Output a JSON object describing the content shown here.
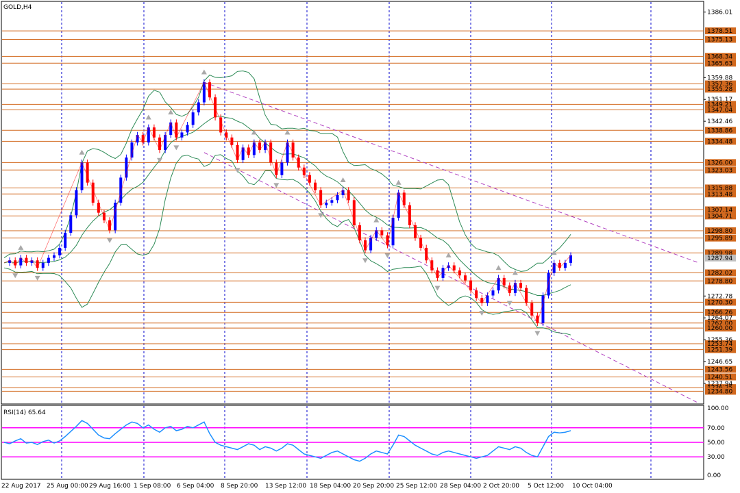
{
  "header": {
    "symbol_label": "GOLD,H4",
    "rsi_label": "RSI(14) 65.64"
  },
  "colors": {
    "bull": "#0000ff",
    "bear": "#ff0000",
    "level": "#d2691e",
    "grid_v": "#0000cc",
    "channel": "#b040c0",
    "band": "#2e8b57",
    "rsi_line": "#1e90ff",
    "rsi_levels": "#ff00ff",
    "fractal": "#a9a9a9",
    "current_price_bg": "#c0c0c0"
  },
  "chart_data": [
    {
      "type": "candlestick",
      "title": "GOLD,H4",
      "y_tick_labels": [
        "1386.01",
        "1359.88",
        "1351.17",
        "1342.46",
        "1272.78",
        "1264.07",
        "1255.36",
        "1246.65",
        "1237.94"
      ],
      "level_labels": [
        "1378.51",
        "1375.13",
        "1368.34",
        "1365.63",
        "1357.36",
        "1355.28",
        "1349.21",
        "1347.04",
        "1338.86",
        "1334.48",
        "1326.00",
        "1323.03",
        "1315.88",
        "1313.48",
        "1307.14",
        "1304.71",
        "1298.80",
        "1295.89",
        "1289.98",
        "1282.02",
        "1278.80",
        "1270.30",
        "1266.26",
        "1262.00",
        "1260.00",
        "1253.74",
        "1251.39",
        "1243.56",
        "1240.51",
        "1236.25",
        "1234.80"
      ],
      "current_price": "1287.94",
      "x_tick_labels": [
        "22 Aug 2017",
        "25 Aug 00:00",
        "29 Aug 16:00",
        "1 Sep 08:00",
        "6 Sep 04:00",
        "8 Sep 20:00",
        "13 Sep 12:00",
        "18 Sep 04:00",
        "20 Sep 20:00",
        "25 Sep 12:00",
        "28 Sep 04:00",
        "2 Oct 20:00",
        "5 Oct 12:00",
        "10 Oct 04:00"
      ],
      "ylim": [
        1230,
        1390
      ],
      "price_path": [
        1286,
        1287,
        1285,
        1288,
        1286,
        1287,
        1284,
        1286,
        1288,
        1289,
        1292,
        1298,
        1305,
        1315,
        1326,
        1318,
        1310,
        1306,
        1303,
        1299,
        1310,
        1320,
        1328,
        1334,
        1337,
        1334,
        1340,
        1336,
        1331,
        1337,
        1342,
        1336,
        1338,
        1341,
        1346,
        1350,
        1358,
        1352,
        1344,
        1338,
        1336,
        1333,
        1327,
        1332,
        1329,
        1334,
        1331,
        1334,
        1326,
        1321,
        1326,
        1334,
        1328,
        1324,
        1321,
        1318,
        1315,
        1309,
        1310,
        1311,
        1313,
        1315,
        1311,
        1301,
        1295,
        1291,
        1296,
        1299,
        1297,
        1293,
        1304,
        1314,
        1309,
        1301,
        1296,
        1292,
        1287,
        1283,
        1280,
        1284,
        1285,
        1283,
        1281,
        1279,
        1275,
        1272,
        1270,
        1273,
        1275,
        1280,
        1277,
        1274,
        1278,
        1276,
        1270,
        1265,
        1262,
        1273,
        1282,
        1286,
        1284,
        1286,
        1289
      ],
      "rsi": {
        "title": "RSI(14) 65.64",
        "ylim": [
          0,
          100
        ],
        "tick_labels": [
          "100.00",
          "70.00",
          "50.00",
          "30.00",
          "0.00"
        ],
        "levels": [
          70,
          50,
          30
        ],
        "values": [
          50,
          48,
          52,
          55,
          49,
          50,
          47,
          51,
          53,
          49,
          52,
          58,
          65,
          72,
          80,
          76,
          68,
          60,
          56,
          55,
          62,
          68,
          74,
          78,
          76,
          70,
          74,
          68,
          64,
          70,
          72,
          66,
          68,
          72,
          70,
          74,
          78,
          62,
          50,
          46,
          44,
          42,
          40,
          44,
          48,
          46,
          40,
          44,
          42,
          38,
          42,
          48,
          46,
          40,
          34,
          32,
          30,
          28,
          32,
          36,
          38,
          34,
          30,
          26,
          24,
          28,
          34,
          38,
          36,
          34,
          46,
          60,
          58,
          52,
          46,
          42,
          38,
          34,
          32,
          36,
          38,
          36,
          34,
          32,
          30,
          28,
          30,
          32,
          38,
          44,
          42,
          40,
          44,
          42,
          36,
          32,
          30,
          44,
          58,
          64,
          63,
          64,
          66
        ]
      }
    }
  ]
}
